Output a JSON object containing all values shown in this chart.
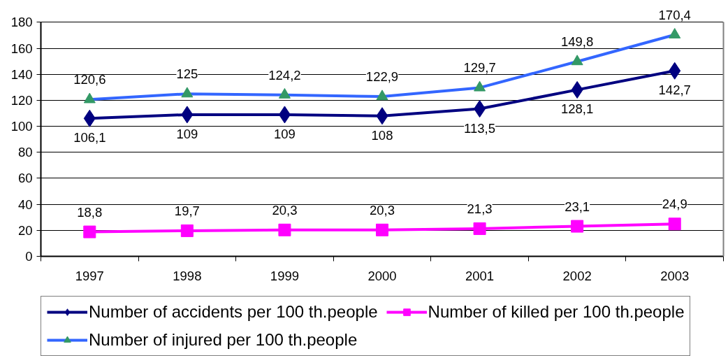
{
  "chart_data": {
    "type": "line",
    "categories": [
      "1997",
      "1998",
      "1999",
      "2000",
      "2001",
      "2002",
      "2003"
    ],
    "ylim": [
      0,
      180
    ],
    "yticks": [
      0,
      20,
      40,
      60,
      80,
      100,
      120,
      140,
      160,
      180
    ],
    "grid": "y",
    "legend": "bottom",
    "line_style": "solid",
    "series": [
      {
        "name": "Number of accidents per 100 th.people",
        "color": "#000080",
        "marker": "diamond",
        "values": [
          106.1,
          109,
          109,
          108,
          113.5,
          128.1,
          142.7
        ],
        "value_labels": [
          "106,1",
          "109",
          "109",
          "108",
          "113,5",
          "128,1",
          "142,7"
        ]
      },
      {
        "name": "Number of killed per 100 th.people",
        "color": "#ff00ff",
        "marker": "square",
        "values": [
          18.8,
          19.7,
          20.3,
          20.3,
          21.3,
          23.1,
          24.9
        ],
        "value_labels": [
          "18,8",
          "19,7",
          "20,3",
          "20,3",
          "21,3",
          "23,1",
          "24,9"
        ]
      },
      {
        "name": "Number of injured per 100 th.people",
        "color": "#3366ff",
        "colors": [
          "#339966",
          "#339966",
          "#339966",
          "#339966",
          "#339966",
          "#339966",
          "#339966"
        ],
        "marker": "triangle",
        "values": [
          120.6,
          125,
          124.2,
          122.9,
          129.7,
          149.8,
          170.4
        ],
        "value_labels": [
          "120,6",
          "125",
          "124,2",
          "122,9",
          "129,7",
          "149,8",
          "170,4"
        ]
      }
    ]
  }
}
